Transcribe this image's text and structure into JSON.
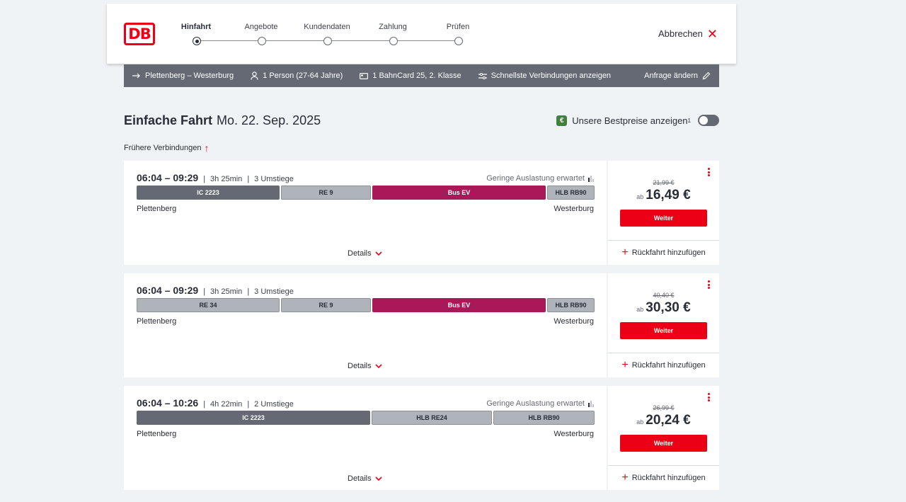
{
  "header": {
    "logo_text": "DB",
    "steps": [
      {
        "label": "Hinfahrt"
      },
      {
        "label": "Angebote"
      },
      {
        "label": "Kundendaten"
      },
      {
        "label": "Zahlung"
      },
      {
        "label": "Prüfen"
      }
    ],
    "active_step": 0,
    "cancel_label": "Abbrechen"
  },
  "infobar": {
    "route": "Plettenberg – Westerburg",
    "passengers": "1 Person (27-64 Jahre)",
    "bahncard": "1 BahnCard 25, 2. Klasse",
    "fastest": "Schnellste Verbindungen anzeigen",
    "change": "Anfrage ändern"
  },
  "title": {
    "trip_type": "Einfache Fahrt",
    "date": "Mo. 22. Sep. 2025"
  },
  "best_prices": {
    "badge": "€",
    "label": "Unsere Bestpreise anzeigen",
    "footnote": "1"
  },
  "earlier_label": "Frühere Verbindungen",
  "connections": [
    {
      "times": "06:04 – 09:29",
      "duration": "3h 25min",
      "transfers": "3 Umstiege",
      "occupancy": "Geringe Auslastung erwartet",
      "segments": [
        {
          "label": "IC 2223",
          "type": "ic"
        },
        {
          "label": "RE 9",
          "type": "re"
        },
        {
          "label": "Bus EV",
          "type": "bus"
        },
        {
          "label": "HLB RB90",
          "type": "re"
        }
      ],
      "from": "Plettenberg",
      "to": "Westerburg",
      "details": "Details",
      "old_price": "21,99 €",
      "price_prefix": "ab",
      "price": "16,49 €",
      "button": "Weiter",
      "return": "Rückfahrt hinzufügen"
    },
    {
      "times": "06:04 – 09:29",
      "duration": "3h 25min",
      "transfers": "3 Umstiege",
      "occupancy": "",
      "segments": [
        {
          "label": "RE 34",
          "type": "re"
        },
        {
          "label": "RE 9",
          "type": "re"
        },
        {
          "label": "Bus EV",
          "type": "bus"
        },
        {
          "label": "HLB RB90",
          "type": "re"
        }
      ],
      "from": "Plettenberg",
      "to": "Westerburg",
      "details": "Details",
      "old_price": "40,40 €",
      "price_prefix": "ab",
      "price": "30,30 €",
      "button": "Weiter",
      "return": "Rückfahrt hinzufügen"
    },
    {
      "times": "06:04 – 10:26",
      "duration": "4h 22min",
      "transfers": "2 Umstiege",
      "occupancy": "Geringe Auslastung erwartet",
      "segments": [
        {
          "label": "IC 2223",
          "type": "ic"
        },
        {
          "label": "HLB RE24",
          "type": "re"
        },
        {
          "label": "HLB RB90",
          "type": "re"
        }
      ],
      "from": "Plettenberg",
      "to": "Westerburg",
      "details": "Details",
      "old_price": "26,99 €",
      "price_prefix": "ab",
      "price": "20,24 €",
      "button": "Weiter",
      "return": "Rückfahrt hinzufügen"
    }
  ],
  "colors": {
    "db_red": "#ec0016",
    "bus": "#a9195a",
    "ic": "#646973",
    "regional": "#afb4bb",
    "bestprice_green": "#408335"
  },
  "icons": [
    "route-arrow-icon",
    "person-icon",
    "bahncard-icon",
    "filter-icon",
    "pencil-icon",
    "close-icon",
    "arrow-up-icon",
    "chevron-down-icon",
    "plus-icon",
    "more-vertical-icon",
    "occupancy-icon"
  ]
}
